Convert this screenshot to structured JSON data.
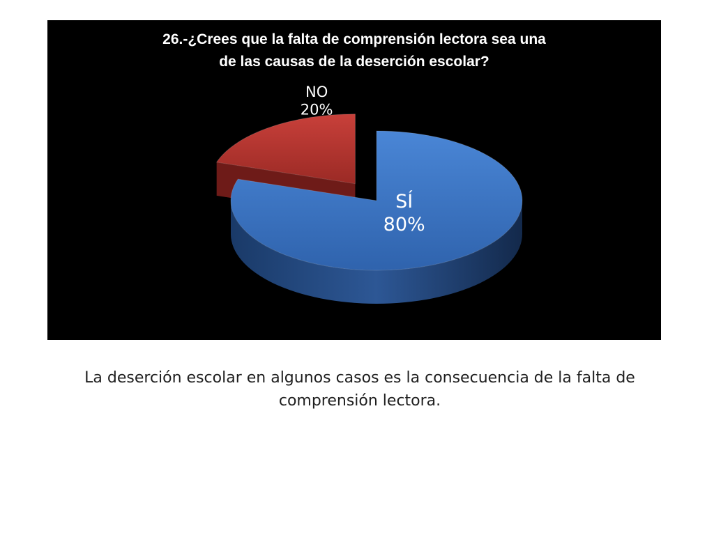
{
  "chart_data": {
    "type": "pie",
    "title_lines": [
      "26.-¿Crees que la falta de comprensión lectora sea una",
      "de las causas de la deserción escolar?"
    ],
    "slices": [
      {
        "category": "SÍ",
        "value": 80,
        "value_label": "80%",
        "color": "#3a72c0",
        "exploded": false
      },
      {
        "category": "NO",
        "value": 20,
        "value_label": "20%",
        "color": "#b3322c",
        "exploded": true
      }
    ],
    "style": "3d-exploded-pie",
    "background": "#000000"
  },
  "caption_text": "La deserción escolar en algunos casos es la consecuencia de la falta de comprensión lectora."
}
